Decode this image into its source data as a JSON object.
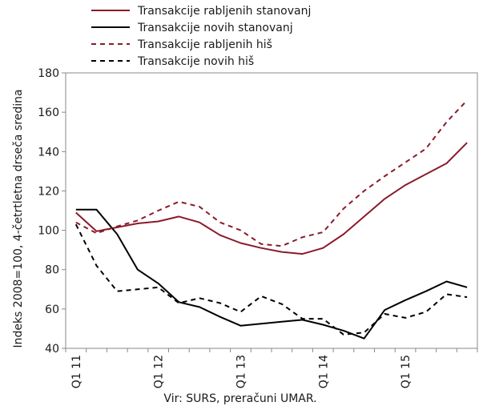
{
  "chart_data": {
    "type": "line",
    "xlabel": "",
    "ylabel": "Indeks 2008=100, 4-četrtletna drseča sredina",
    "ylim": [
      40,
      180
    ],
    "yticks": [
      40,
      60,
      80,
      100,
      120,
      140,
      160,
      180
    ],
    "categories": [
      "Q1 11",
      "Q2 11",
      "Q3 11",
      "Q4 11",
      "Q1 12",
      "Q2 12",
      "Q3 12",
      "Q4 12",
      "Q1 13",
      "Q2 13",
      "Q3 13",
      "Q4 13",
      "Q1 14",
      "Q2 14",
      "Q3 14",
      "Q4 14",
      "Q1 15",
      "Q2 15",
      "Q3 15",
      "Q4 15"
    ],
    "xtick_labels": [
      "Q1 11",
      "Q1 12",
      "Q1 13",
      "Q1 14",
      "Q1 15"
    ],
    "grid": false,
    "legend_position": "top",
    "series": [
      {
        "name": "Transakcije rabljenih stanovanj",
        "color": "#8b1a2b",
        "dash": "solid",
        "values": [
          109,
          99.5,
          101.5,
          103.5,
          104.5,
          107,
          104,
          97.5,
          93.5,
          91,
          89,
          88,
          91,
          98,
          107,
          116,
          123,
          128.5,
          134,
          144.5
        ]
      },
      {
        "name": "Transakcije novih stanovanj",
        "color": "#000000",
        "dash": "solid",
        "values": [
          110.5,
          110.5,
          98,
          80,
          73,
          63.5,
          61,
          56,
          51.5,
          52.5,
          53.5,
          54.5,
          52,
          49,
          45,
          59.5,
          64.5,
          69,
          74,
          71
        ]
      },
      {
        "name": "Transakcije rabljenih hiš",
        "color": "#8b1a2b",
        "dash": "dashed",
        "values": [
          104,
          98.5,
          102,
          105,
          110,
          114.5,
          112,
          104,
          100,
          93,
          92,
          96.5,
          99,
          111,
          120,
          127.5,
          134.5,
          141.5,
          155,
          166
        ]
      },
      {
        "name": "Transakcije novih hiš",
        "color": "#000000",
        "dash": "dashed",
        "values": [
          103,
          82,
          69,
          70,
          71,
          63,
          65.5,
          63,
          58.5,
          66.5,
          62.5,
          55,
          55,
          47,
          48,
          57.5,
          55.5,
          58.5,
          67.5,
          66
        ]
      }
    ],
    "source": "Vir: SURS, preračuni UMAR."
  }
}
